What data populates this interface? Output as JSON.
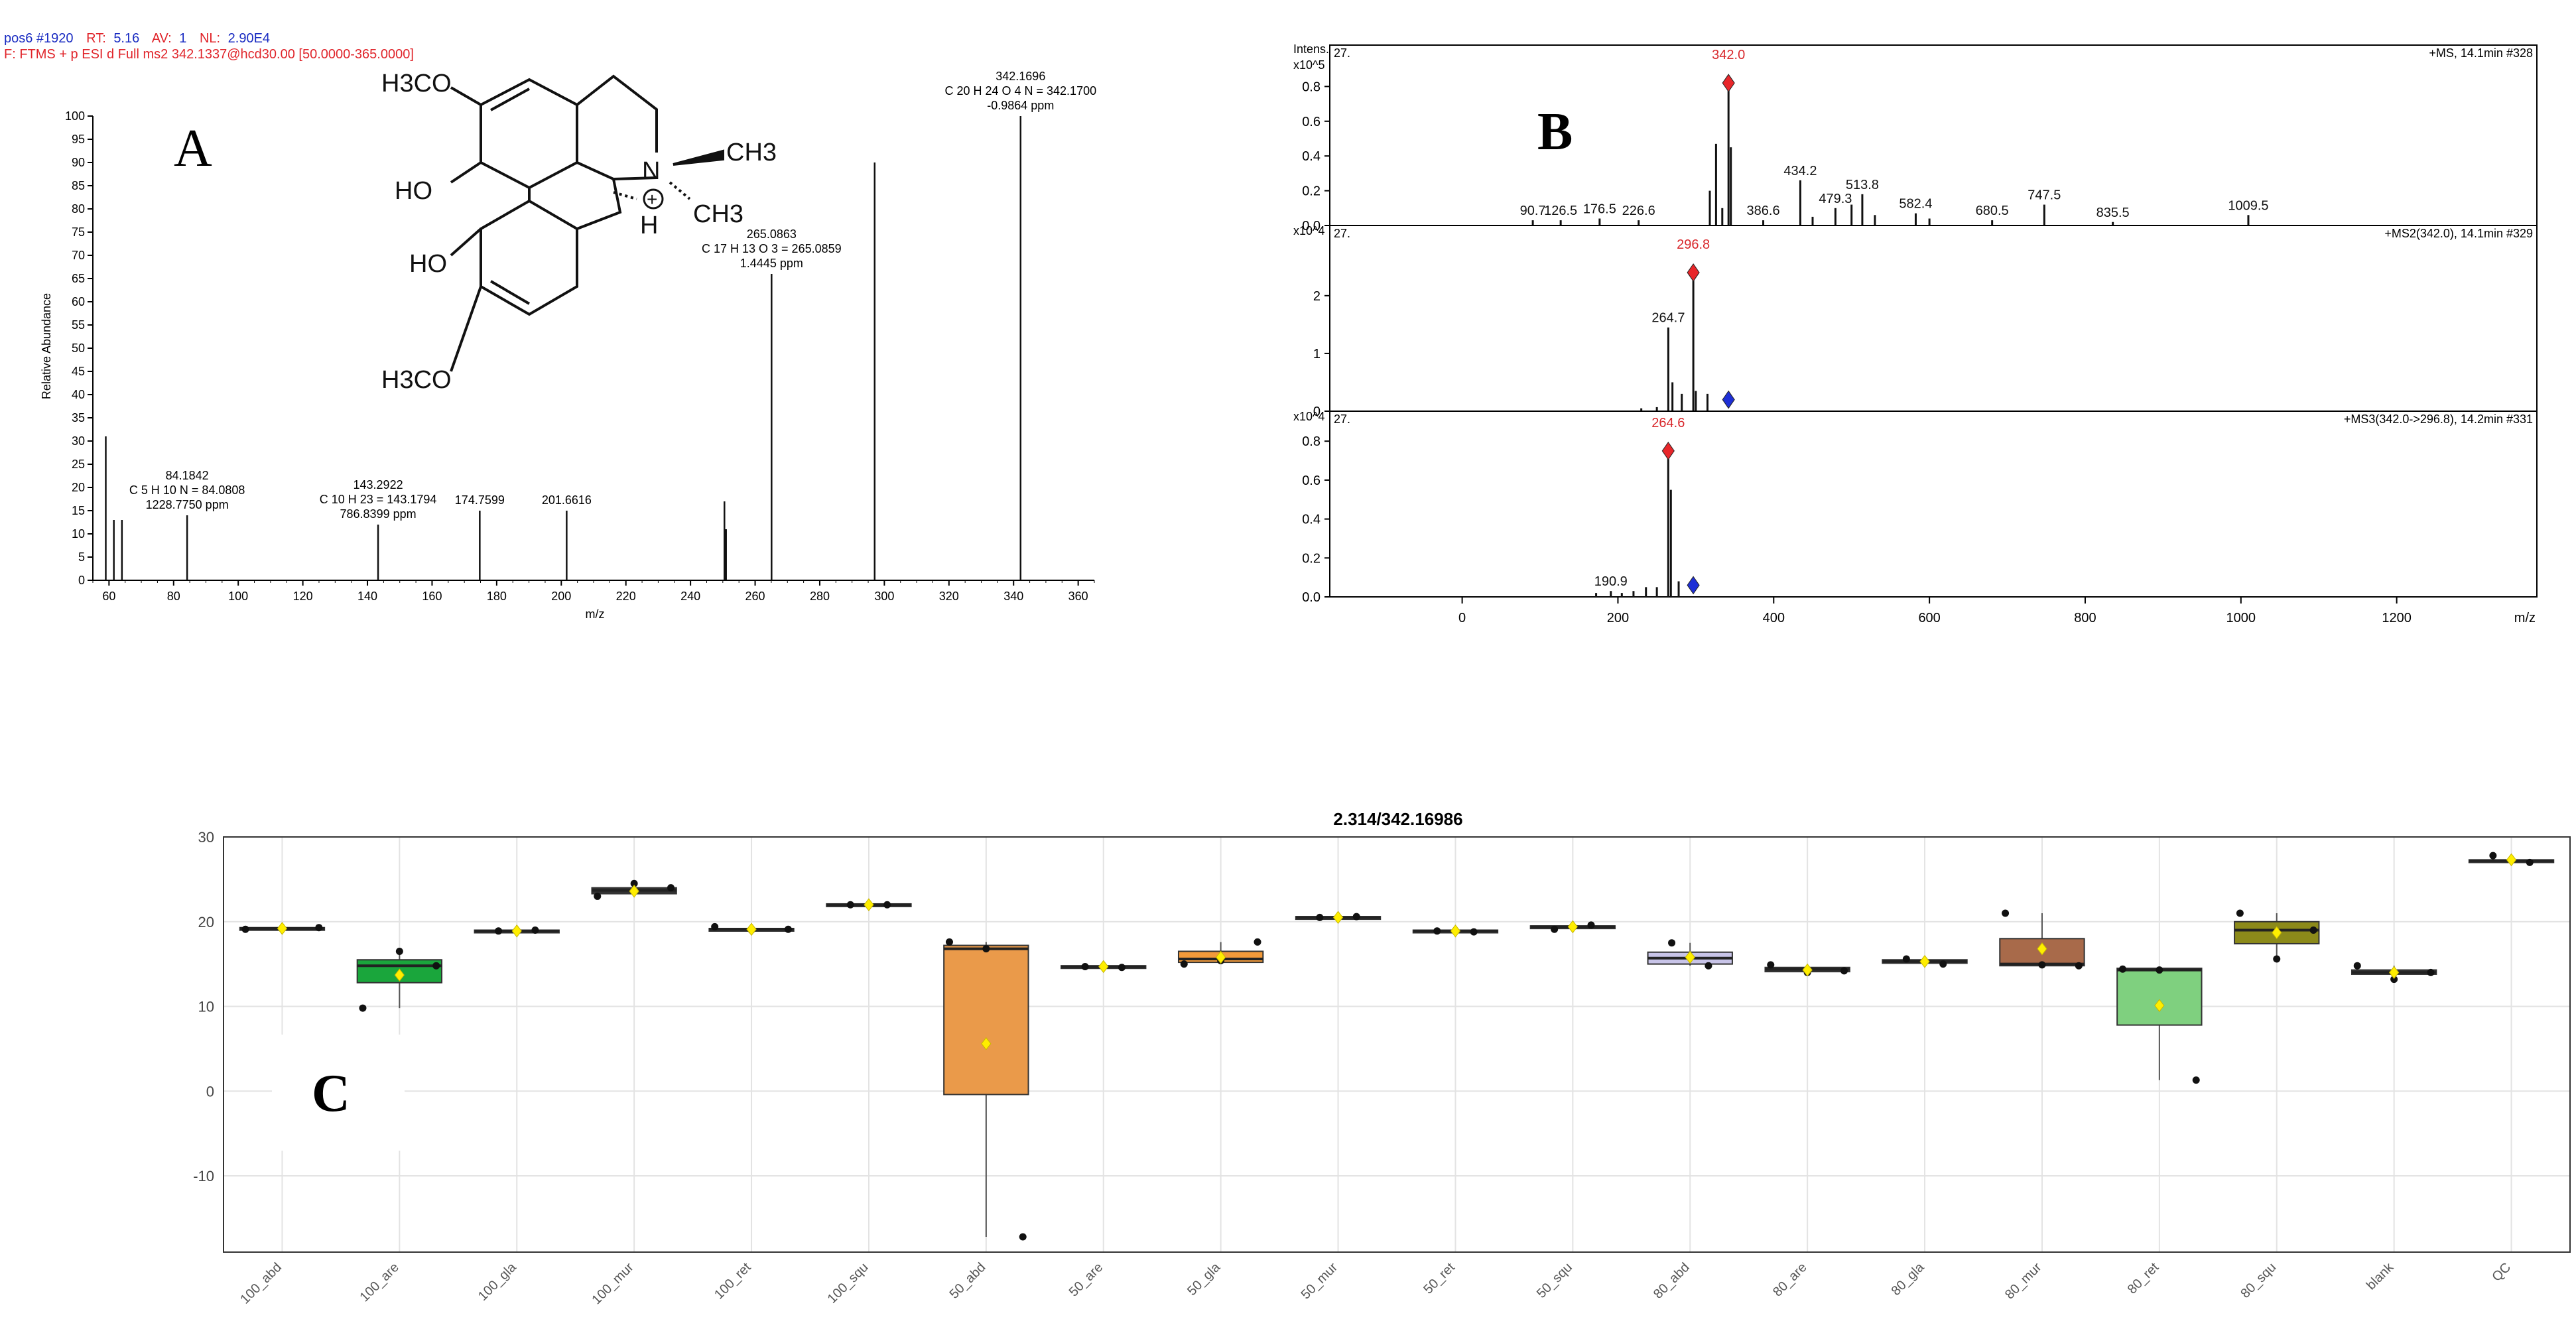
{
  "chart_data": [
    {
      "type": "bar",
      "panel_label": "A",
      "header": {
        "scan_prefix": "pos6 #1920",
        "rt_label": "RT:",
        "rt": "5.16",
        "av_label": "AV:",
        "av": "1",
        "nl_label": "NL:",
        "nl": "2.90E4",
        "filter": "F: FTMS + p ESI d Full ms2 342.1337@hcd30.00 [50.0000-365.0000]"
      },
      "xlabel": "m/z",
      "ylabel": "Relative Abundance",
      "xlim": [
        55,
        365
      ],
      "ylim": [
        0,
        100
      ],
      "xticks": [
        60,
        80,
        100,
        120,
        140,
        160,
        180,
        200,
        220,
        240,
        260,
        280,
        300,
        320,
        340,
        360
      ],
      "yticks": [
        0,
        5,
        10,
        15,
        20,
        25,
        30,
        35,
        40,
        45,
        50,
        55,
        60,
        65,
        70,
        75,
        80,
        85,
        90,
        95,
        100
      ],
      "peaks": [
        {
          "mz": 59.0,
          "intensity": 31
        },
        {
          "mz": 61.5,
          "intensity": 13
        },
        {
          "mz": 64.0,
          "intensity": 13
        },
        {
          "mz": 84.1842,
          "intensity": 14
        },
        {
          "mz": 143.2922,
          "intensity": 12
        },
        {
          "mz": 174.7599,
          "intensity": 15
        },
        {
          "mz": 201.6616,
          "intensity": 15
        },
        {
          "mz": 250.5,
          "intensity": 17
        },
        {
          "mz": 251.0,
          "intensity": 11
        },
        {
          "mz": 265.0863,
          "intensity": 66
        },
        {
          "mz": 297.0,
          "intensity": 90
        },
        {
          "mz": 342.1696,
          "intensity": 100
        }
      ],
      "annotations": [
        {
          "mz": 342.1696,
          "lines": [
            "342.1696",
            "C 20 H 24 O 4 N = 342.1700",
            "-0.9864 ppm"
          ]
        },
        {
          "mz": 265.0863,
          "lines": [
            "265.0863",
            "C 17 H 13 O 3 = 265.0859",
            "1.4445 ppm"
          ]
        },
        {
          "mz": 84.1842,
          "lines": [
            "84.1842",
            "C 5 H 10 N = 84.0808",
            "1228.7750 ppm"
          ]
        },
        {
          "mz": 143.2922,
          "lines": [
            "143.2922",
            "C 10 H 23 = 143.1794",
            "786.8399 ppm"
          ]
        },
        {
          "mz": 174.7599,
          "lines": [
            "174.7599"
          ]
        },
        {
          "mz": 201.6616,
          "lines": [
            "201.6616"
          ]
        }
      ],
      "structure_labels": [
        "H3CO",
        "HO",
        "HO",
        "H3CO",
        "N",
        "+",
        "CH3",
        "CH3",
        "H"
      ]
    },
    {
      "type": "bar",
      "panel_label": "B",
      "xlabel": "m/z",
      "xlim": [
        -170,
        1380
      ],
      "xticks": [
        0,
        200,
        400,
        600,
        800,
        1000,
        1200
      ],
      "panels": [
        {
          "name": "MS",
          "scale_label": "x10^5",
          "top_label": "Intens.",
          "code": "27.",
          "info": "+MS, 14.1min #328",
          "ylim": [
            0,
            1.0
          ],
          "yticks": [
            0.0,
            0.2,
            0.4,
            0.6,
            0.8
          ],
          "ytick_labels": [
            "0.0",
            "0.2",
            "0.4",
            "0.6",
            "0.8"
          ],
          "peaks": [
            {
              "mz": 90.7,
              "intensity": 0.03
            },
            {
              "mz": 126.5,
              "intensity": 0.03
            },
            {
              "mz": 176.5,
              "intensity": 0.04
            },
            {
              "mz": 226.6,
              "intensity": 0.03
            },
            {
              "mz": 318,
              "intensity": 0.2
            },
            {
              "mz": 326,
              "intensity": 0.47
            },
            {
              "mz": 334,
              "intensity": 0.1
            },
            {
              "mz": 342.0,
              "intensity": 0.82
            },
            {
              "mz": 345,
              "intensity": 0.45
            },
            {
              "mz": 386.6,
              "intensity": 0.03
            },
            {
              "mz": 434.2,
              "intensity": 0.26
            },
            {
              "mz": 450,
              "intensity": 0.05
            },
            {
              "mz": 479.3,
              "intensity": 0.1
            },
            {
              "mz": 500,
              "intensity": 0.12
            },
            {
              "mz": 513.8,
              "intensity": 0.18
            },
            {
              "mz": 530,
              "intensity": 0.06
            },
            {
              "mz": 582.4,
              "intensity": 0.07
            },
            {
              "mz": 600,
              "intensity": 0.04
            },
            {
              "mz": 680.5,
              "intensity": 0.03
            },
            {
              "mz": 747.5,
              "intensity": 0.12
            },
            {
              "mz": 835.5,
              "intensity": 0.02
            },
            {
              "mz": 1009.5,
              "intensity": 0.06
            }
          ],
          "labels": [
            {
              "mz": 90.7,
              "text": "90.7"
            },
            {
              "mz": 126.5,
              "text": "126.5"
            },
            {
              "mz": 176.5,
              "text": "176.5"
            },
            {
              "mz": 226.6,
              "text": "226.6"
            },
            {
              "mz": 342.0,
              "text": "342.0",
              "highlight": true
            },
            {
              "mz": 386.6,
              "text": "386.6"
            },
            {
              "mz": 434.2,
              "text": "434.2"
            },
            {
              "mz": 479.3,
              "text": "479.3"
            },
            {
              "mz": 513.8,
              "text": "513.8"
            },
            {
              "mz": 582.4,
              "text": "582.4"
            },
            {
              "mz": 680.5,
              "text": "680.5"
            },
            {
              "mz": 747.5,
              "text": "747.5"
            },
            {
              "mz": 835.5,
              "text": "835.5"
            },
            {
              "mz": 1009.5,
              "text": "1009.5"
            }
          ],
          "markers": [
            {
              "mz": 342.0,
              "intensity": 0.82,
              "color": "#e8262a"
            }
          ]
        },
        {
          "name": "MS2",
          "scale_label": "x10^4",
          "code": "27.",
          "info": "+MS2(342.0), 14.1min #329",
          "ylim": [
            0,
            3.1
          ],
          "yticks": [
            0,
            1,
            2
          ],
          "ytick_labels": [
            "0",
            "1",
            "2"
          ],
          "peaks": [
            {
              "mz": 230,
              "intensity": 0.05
            },
            {
              "mz": 250,
              "intensity": 0.07
            },
            {
              "mz": 264.7,
              "intensity": 1.45
            },
            {
              "mz": 270,
              "intensity": 0.5
            },
            {
              "mz": 282,
              "intensity": 0.3
            },
            {
              "mz": 296.8,
              "intensity": 2.4
            },
            {
              "mz": 300,
              "intensity": 0.35
            },
            {
              "mz": 315,
              "intensity": 0.3
            }
          ],
          "labels": [
            {
              "mz": 264.7,
              "text": "264.7"
            },
            {
              "mz": 296.8,
              "text": "296.8",
              "highlight": true
            }
          ],
          "markers": [
            {
              "mz": 296.8,
              "intensity": 2.4,
              "color": "#e8262a"
            },
            {
              "mz": 342.0,
              "intensity": 0.2,
              "color": "#1e2fd6"
            }
          ]
        },
        {
          "name": "MS3",
          "scale_label": "x10^4",
          "code": "27.",
          "info": "+MS3(342.0->296.8), 14.2min #331",
          "ylim": [
            0,
            0.92
          ],
          "yticks": [
            0.0,
            0.2,
            0.4,
            0.6,
            0.8
          ],
          "ytick_labels": [
            "0.0",
            "0.2",
            "0.4",
            "0.6",
            "0.8"
          ],
          "peaks": [
            {
              "mz": 172,
              "intensity": 0.02
            },
            {
              "mz": 190.9,
              "intensity": 0.03
            },
            {
              "mz": 205,
              "intensity": 0.02
            },
            {
              "mz": 220,
              "intensity": 0.03
            },
            {
              "mz": 236,
              "intensity": 0.05
            },
            {
              "mz": 250,
              "intensity": 0.05
            },
            {
              "mz": 264.6,
              "intensity": 0.75
            },
            {
              "mz": 268,
              "intensity": 0.55
            },
            {
              "mz": 278,
              "intensity": 0.08
            }
          ],
          "labels": [
            {
              "mz": 190.9,
              "text": "190.9"
            },
            {
              "mz": 264.6,
              "text": "264.6",
              "highlight": true
            }
          ],
          "markers": [
            {
              "mz": 264.6,
              "intensity": 0.75,
              "color": "#e8262a"
            },
            {
              "mz": 296.8,
              "intensity": 0.06,
              "color": "#1e2fd6"
            }
          ]
        }
      ]
    },
    {
      "type": "box",
      "panel_label": "C",
      "title": "2.314/342.16986",
      "ylim": [
        -19,
        30
      ],
      "yticks": [
        -10,
        0,
        10,
        20,
        30
      ],
      "categories": [
        "100_abd",
        "100_are",
        "100_gla",
        "100_mur",
        "100_ret",
        "100_squ",
        "50_abd",
        "50_are",
        "50_gla",
        "50_mur",
        "50_ret",
        "50_squ",
        "80_abd",
        "80_are",
        "80_gla",
        "80_mur",
        "80_ret",
        "80_squ",
        "blank",
        "QC"
      ],
      "boxes": [
        {
          "q1": 19.0,
          "median": 19.2,
          "q3": 19.3,
          "whisker_low": 19.0,
          "whisker_high": 19.3,
          "mean": 19.2,
          "color": "#333333",
          "points": [
            19.1,
            19.2,
            19.3
          ]
        },
        {
          "q1": 12.8,
          "median": 14.8,
          "q3": 15.5,
          "whisker_low": 9.8,
          "whisker_high": 16.5,
          "mean": 13.7,
          "color": "#1aa63c",
          "points": [
            9.8,
            16.5,
            14.8
          ]
        },
        {
          "q1": 18.8,
          "median": 18.9,
          "q3": 19.0,
          "whisker_low": 18.8,
          "whisker_high": 19.0,
          "mean": 18.9,
          "color": "#333333",
          "points": [
            18.9,
            19.0
          ]
        },
        {
          "q1": 23.3,
          "median": 23.7,
          "q3": 24.0,
          "whisker_low": 23.0,
          "whisker_high": 24.5,
          "mean": 23.6,
          "color": "#333333",
          "points": [
            23.0,
            24.5,
            24.0
          ]
        },
        {
          "q1": 19.0,
          "median": 19.1,
          "q3": 19.2,
          "whisker_low": 18.9,
          "whisker_high": 19.4,
          "mean": 19.1,
          "color": "#333333",
          "points": [
            19.4,
            19.0,
            19.1
          ]
        },
        {
          "q1": 21.9,
          "median": 22.0,
          "q3": 22.1,
          "whisker_low": 21.9,
          "whisker_high": 22.1,
          "mean": 22.0,
          "color": "#333333",
          "points": [
            22.0,
            22.0
          ]
        },
        {
          "q1": -0.4,
          "median": 16.8,
          "q3": 17.2,
          "whisker_low": -17.2,
          "whisker_high": 17.6,
          "mean": 5.6,
          "color": "#ea9a4a",
          "points": [
            17.6,
            16.8,
            -17.2
          ]
        },
        {
          "q1": 14.6,
          "median": 14.7,
          "q3": 14.8,
          "whisker_low": 14.6,
          "whisker_high": 14.8,
          "mean": 14.7,
          "color": "#333333",
          "points": [
            14.7,
            14.6
          ]
        },
        {
          "q1": 15.2,
          "median": 15.6,
          "q3": 16.5,
          "whisker_low": 15.0,
          "whisker_high": 17.6,
          "mean": 15.8,
          "color": "#f29a3a",
          "points": [
            15.0,
            15.4,
            17.6
          ]
        },
        {
          "q1": 20.4,
          "median": 20.5,
          "q3": 20.6,
          "whisker_low": 20.4,
          "whisker_high": 20.6,
          "mean": 20.5,
          "color": "#333333",
          "points": [
            20.5,
            20.6
          ]
        },
        {
          "q1": 18.8,
          "median": 18.9,
          "q3": 19.0,
          "whisker_low": 18.8,
          "whisker_high": 19.0,
          "mean": 18.9,
          "color": "#333333",
          "points": [
            18.9,
            18.8
          ]
        },
        {
          "q1": 19.2,
          "median": 19.4,
          "q3": 19.5,
          "whisker_low": 19.1,
          "whisker_high": 19.6,
          "mean": 19.4,
          "color": "#333333",
          "points": [
            19.1,
            19.6
          ]
        },
        {
          "q1": 15.0,
          "median": 15.7,
          "q3": 16.4,
          "whisker_low": 14.8,
          "whisker_high": 17.5,
          "mean": 15.8,
          "color": "#c8c4e8",
          "points": [
            17.5,
            14.8
          ]
        },
        {
          "q1": 14.1,
          "median": 14.4,
          "q3": 14.6,
          "whisker_low": 13.9,
          "whisker_high": 14.9,
          "mean": 14.3,
          "color": "#333333",
          "points": [
            14.9,
            14.0,
            14.2
          ]
        },
        {
          "q1": 15.1,
          "median": 15.3,
          "q3": 15.5,
          "whisker_low": 15.0,
          "whisker_high": 15.7,
          "mean": 15.3,
          "color": "#333333",
          "points": [
            15.6,
            15.0
          ]
        },
        {
          "q1": 14.8,
          "median": 15.0,
          "q3": 18.0,
          "whisker_low": 14.8,
          "whisker_high": 21.0,
          "mean": 16.8,
          "color": "#a86a4a",
          "points": [
            21.0,
            14.9,
            14.8
          ]
        },
        {
          "q1": 7.8,
          "median": 14.3,
          "q3": 14.5,
          "whisker_low": 1.3,
          "whisker_high": 14.5,
          "mean": 10.1,
          "color": "#7fd07f",
          "points": [
            14.4,
            14.3,
            1.3
          ]
        },
        {
          "q1": 17.4,
          "median": 19.0,
          "q3": 20.0,
          "whisker_low": 15.6,
          "whisker_high": 21.0,
          "mean": 18.7,
          "color": "#8c8a1a",
          "points": [
            21.0,
            15.6,
            19.0
          ]
        },
        {
          "q1": 13.8,
          "median": 14.0,
          "q3": 14.3,
          "whisker_low": 13.2,
          "whisker_high": 14.8,
          "mean": 14.0,
          "color": "#333333",
          "points": [
            14.8,
            13.2,
            14.0
          ]
        },
        {
          "q1": 27.0,
          "median": 27.2,
          "q3": 27.3,
          "whisker_low": 26.9,
          "whisker_high": 27.8,
          "mean": 27.3,
          "color": "#333333",
          "points": [
            27.8,
            27.0
          ]
        }
      ]
    }
  ],
  "colors": {
    "header_blue": "#1a2cc2",
    "header_red": "#e0242a",
    "highlight_red": "#d8262a",
    "marker_blue": "#1e2fd6",
    "mean_marker": "#ffee00",
    "panel_c_grid": "#e3e3e3"
  }
}
